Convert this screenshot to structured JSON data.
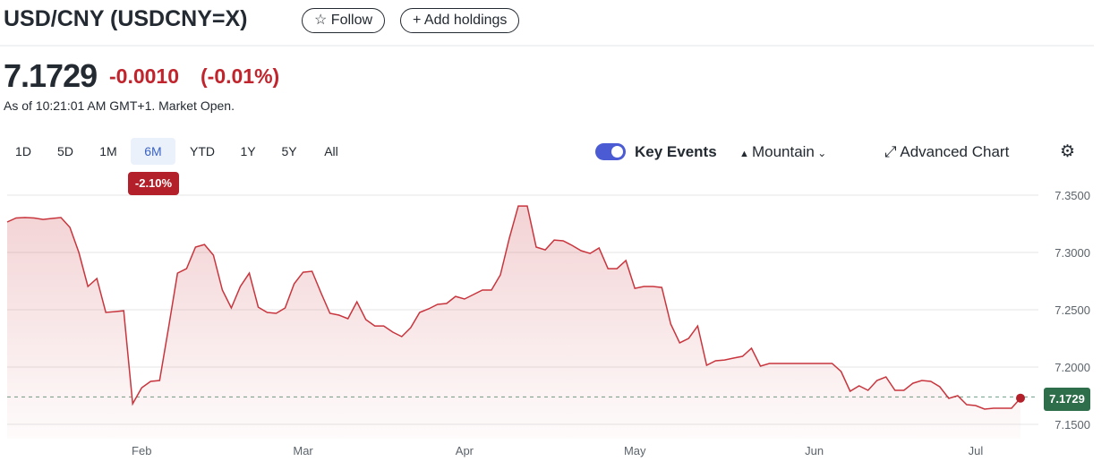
{
  "header": {
    "title": "USD/CNY (USDCNY=X)",
    "follow": "Follow",
    "add_holdings": "Add holdings"
  },
  "quote": {
    "price": "7.1729",
    "change": "-0.0010",
    "change_percent": "(-0.01%)",
    "as_of": "As of 10:21:01 AM GMT+1. Market Open."
  },
  "toolbar": {
    "ranges": [
      "1D",
      "5D",
      "1M",
      "6M",
      "YTD",
      "1Y",
      "5Y",
      "All"
    ],
    "range_change": "-2.10%",
    "key_events": "Key Events",
    "chart_style": "Mountain",
    "advanced_chart": "Advanced Chart"
  },
  "chart_data": {
    "type": "area",
    "color": "#c8353d",
    "grid": true,
    "categories": [
      null,
      null,
      null,
      null,
      null,
      null,
      null,
      null,
      null,
      null,
      null,
      null,
      null,
      null,
      null,
      "Feb",
      null,
      null,
      null,
      null,
      null,
      null,
      null,
      null,
      null,
      null,
      null,
      null,
      null,
      null,
      null,
      null,
      null,
      "Mar",
      null,
      null,
      null,
      null,
      null,
      null,
      null,
      null,
      null,
      null,
      null,
      null,
      null,
      null,
      null,
      null,
      null,
      "Apr",
      null,
      null,
      null,
      null,
      null,
      null,
      null,
      null,
      null,
      null,
      null,
      null,
      null,
      null,
      null,
      null,
      null,
      null,
      "May",
      null,
      null,
      null,
      null,
      null,
      null,
      null,
      null,
      null,
      null,
      null,
      null,
      null,
      null,
      null,
      null,
      null,
      null,
      null,
      "Jun",
      null,
      null,
      null,
      null,
      null,
      null,
      null,
      null,
      null,
      null,
      null,
      null,
      null,
      null,
      null,
      null,
      null,
      "Jul",
      null,
      null,
      null,
      null,
      null
    ],
    "values": [
      7.3266,
      7.3301,
      7.3305,
      7.3301,
      7.3289,
      7.3297,
      7.3305,
      7.3219,
      7.3,
      7.2703,
      7.2773,
      7.2477,
      7.2484,
      7.2492,
      7.168,
      7.182,
      7.1875,
      7.1883,
      7.2344,
      7.282,
      7.2859,
      7.3047,
      7.307,
      7.2977,
      7.2672,
      7.2516,
      7.2703,
      7.282,
      7.2523,
      7.2477,
      7.2469,
      7.2516,
      7.2727,
      7.2828,
      7.2836,
      7.2648,
      7.2469,
      7.2453,
      7.2422,
      7.257,
      7.2414,
      7.2359,
      7.2359,
      7.2305,
      7.2266,
      7.2344,
      7.2477,
      7.2508,
      7.2547,
      7.2555,
      7.2617,
      7.2594,
      7.2633,
      7.2672,
      7.2672,
      7.2805,
      7.3125,
      7.3406,
      7.3406,
      7.3047,
      7.3023,
      7.3109,
      7.3102,
      7.3062,
      7.3016,
      7.2992,
      7.3039,
      7.2859,
      7.2859,
      7.293,
      7.2687,
      7.2703,
      7.2703,
      7.2695,
      7.2375,
      7.2211,
      7.225,
      7.2359,
      7.2016,
      7.2055,
      7.2062,
      7.2078,
      7.2094,
      7.2164,
      7.2008,
      7.2031,
      7.2031,
      7.2031,
      7.2031,
      7.2031,
      7.2031,
      7.2031,
      7.2031,
      7.1961,
      7.1789,
      7.1836,
      7.1797,
      7.1883,
      7.1914,
      7.1797,
      7.1797,
      7.1859,
      7.1883,
      7.1875,
      7.1828,
      7.1727,
      7.175,
      7.1672,
      7.1664,
      7.1633,
      7.1641,
      7.1641,
      7.1641,
      7.1729
    ],
    "ylim": [
      7.1375,
      7.3602
    ],
    "yticks": [
      {
        "value": 7.15,
        "label": "7.1500"
      },
      {
        "value": 7.2,
        "label": "7.2000"
      },
      {
        "value": 7.25,
        "label": "7.2500"
      },
      {
        "value": 7.3,
        "label": "7.3000"
      },
      {
        "value": 7.35,
        "label": "7.3500"
      }
    ],
    "previous_close": 7.1739
  }
}
